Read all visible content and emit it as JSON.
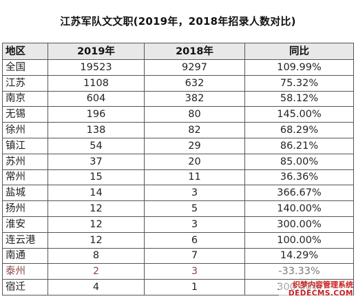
{
  "title": "江苏军队文文职(2019年，2018年招录人数对比)",
  "table": {
    "headers": [
      "地区",
      "2019年",
      "2018年",
      "同比"
    ],
    "rows": [
      {
        "region": "全国",
        "y2019": "19523",
        "y2018": "9297",
        "ratio": "109.99%"
      },
      {
        "region": "江苏",
        "y2019": "1108",
        "y2018": "632",
        "ratio": "75.32%"
      },
      {
        "region": "南京",
        "y2019": "604",
        "y2018": "382",
        "ratio": "58.12%"
      },
      {
        "region": "无锡",
        "y2019": "196",
        "y2018": "80",
        "ratio": "145.00%"
      },
      {
        "region": "徐州",
        "y2019": "138",
        "y2018": "82",
        "ratio": "68.29%"
      },
      {
        "region": "镇江",
        "y2019": "54",
        "y2018": "29",
        "ratio": "86.21%"
      },
      {
        "region": "苏州",
        "y2019": "37",
        "y2018": "20",
        "ratio": "85.00%"
      },
      {
        "region": "常州",
        "y2019": "15",
        "y2018": "11",
        "ratio": "36.36%"
      },
      {
        "region": "盐城",
        "y2019": "14",
        "y2018": "3",
        "ratio": "366.67%"
      },
      {
        "region": "扬州",
        "y2019": "12",
        "y2018": "5",
        "ratio": "140.00%"
      },
      {
        "region": "淮安",
        "y2019": "12",
        "y2018": "3",
        "ratio": "300.00%"
      },
      {
        "region": "连云港",
        "y2019": "12",
        "y2018": "6",
        "ratio": "100.00%"
      },
      {
        "region": "南通",
        "y2019": "8",
        "y2018": "7",
        "ratio": "14.29%"
      },
      {
        "region": "泰州",
        "y2019": "2",
        "y2018": "3",
        "ratio": "-33.33%"
      },
      {
        "region": "宿迁",
        "y2019": "4",
        "y2018": "1",
        "ratio": "300.00%"
      }
    ]
  },
  "watermark": {
    "cn": "织梦内容管理系统",
    "en": "DEDECMS.COM"
  },
  "colors": {
    "header_bg": "#e8e8e8",
    "border": "#555555",
    "faded_row_text": "#8a4a4a",
    "watermark": "#c62020"
  }
}
